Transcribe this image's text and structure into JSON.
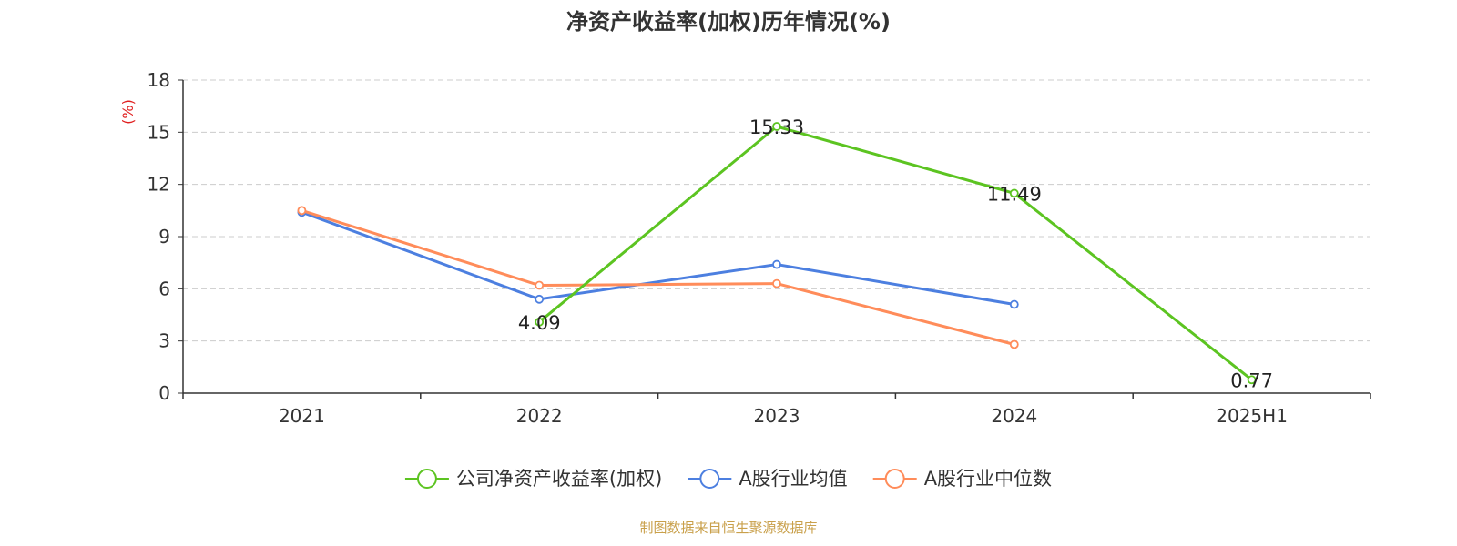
{
  "chart_data": {
    "type": "line",
    "title": "净资产收益率(加权)历年情况(%)",
    "ylabel": "(%)",
    "xlabel": "",
    "categories": [
      "2021",
      "2022",
      "2023",
      "2024",
      "2025H1"
    ],
    "ylim": [
      0,
      18
    ],
    "yticks": [
      0,
      3,
      6,
      9,
      12,
      15,
      18
    ],
    "grid": true,
    "legend_position": "bottom",
    "series": [
      {
        "name": "公司净资产收益率(加权)",
        "color": "#5cc421",
        "values": [
          null,
          4.09,
          15.33,
          11.49,
          0.77
        ],
        "labels": [
          "",
          "4.09",
          "15.33",
          "11.49",
          "0.77"
        ]
      },
      {
        "name": "A股行业均值",
        "color": "#4c7fe0",
        "values": [
          10.4,
          5.4,
          7.4,
          5.1,
          null
        ]
      },
      {
        "name": "A股行业中位数",
        "color": "#ff8c5a",
        "values": [
          10.5,
          6.2,
          6.3,
          2.8,
          null
        ]
      }
    ]
  },
  "source": "制图数据来自恒生聚源数据库"
}
